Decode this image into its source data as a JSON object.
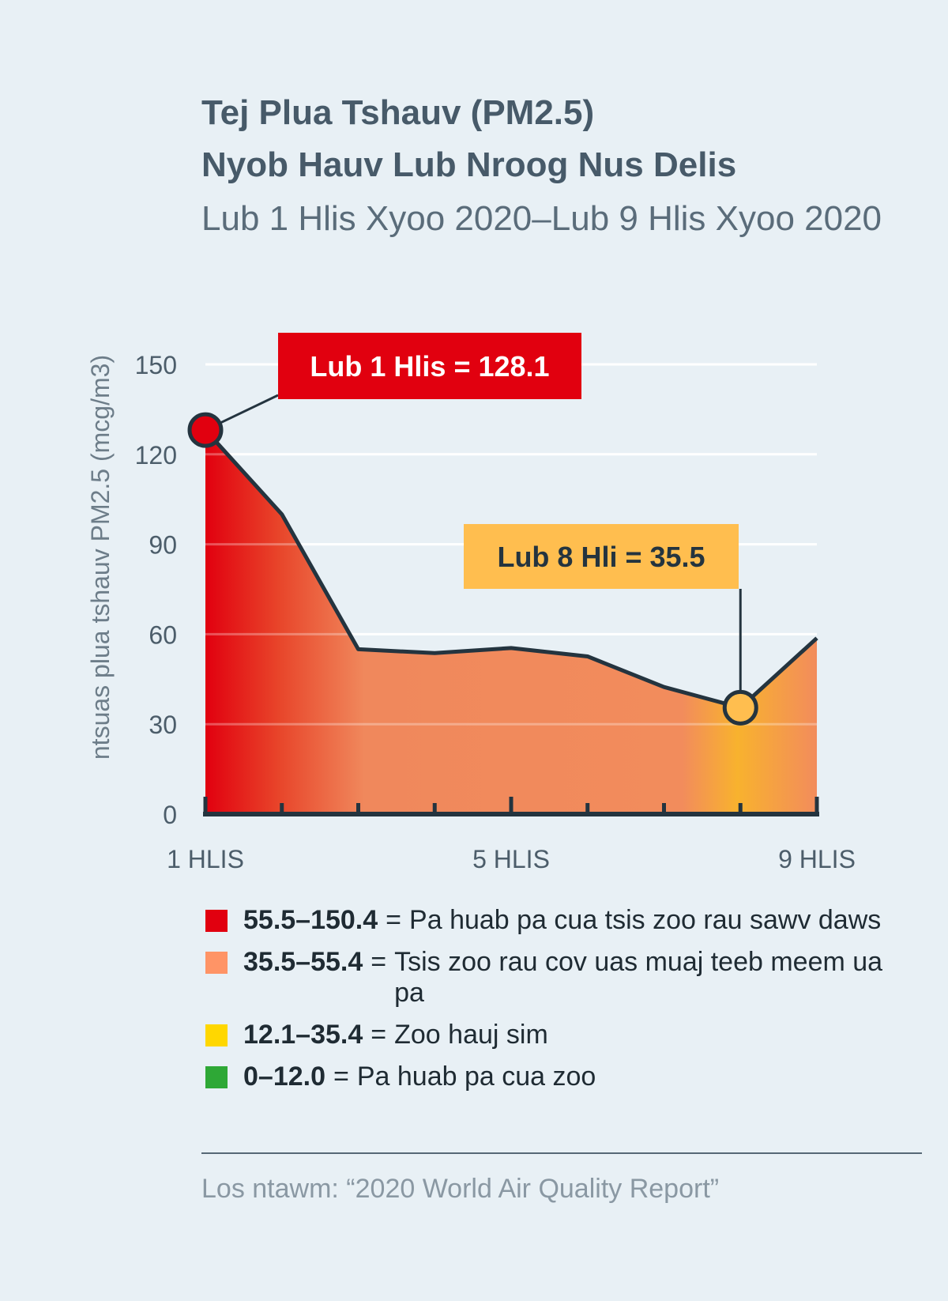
{
  "title_line1": "Tej Plua Tshauv (PM2.5)",
  "title_line2": "Nyob Hauv Lub Nroog Nus Delis",
  "subtitle": "Lub 1 Hlis Xyoo 2020–Lub 9 Hlis Xyoo 2020",
  "chart_data": {
    "type": "area",
    "title": "Tej Plua Tshauv (PM2.5) Nyob Hauv Lub Nroog Nus Delis",
    "ylabel": "ntsuas plua tshauv PM2.5 (mcg/m3)",
    "xlabel": "",
    "x": [
      1,
      2,
      3,
      4,
      5,
      6,
      7,
      8,
      9
    ],
    "x_tick_labels": [
      {
        "x": 1,
        "label": "1 HLIS"
      },
      {
        "x": 5,
        "label": "5 HLIS"
      },
      {
        "x": 9,
        "label": "9 HLIS"
      }
    ],
    "y_ticks": [
      0,
      30,
      60,
      90,
      120,
      150
    ],
    "ylim": [
      0,
      150
    ],
    "values": [
      128.1,
      100,
      55,
      53.7,
      55.4,
      52.6,
      42.4,
      35.5,
      58.7
    ],
    "grid": true,
    "annotations": [
      {
        "x": 1,
        "text": "Lub 1 Hlis = 128.1",
        "color": "#e1000f"
      },
      {
        "x": 8,
        "text": "Lub 8 Hli = 35.5",
        "color": "#ffbe4f"
      }
    ]
  },
  "legend": [
    {
      "range": "55.5–150.4",
      "eq": "=",
      "text": "Pa huab pa cua tsis zoo rau sawv daws",
      "color": "#e1000f"
    },
    {
      "range": "35.5–55.4",
      "eq": "=",
      "text": "Tsis zoo rau cov uas muaj teeb meem ua pa",
      "color": "#ff9466"
    },
    {
      "range": "12.1–35.4",
      "eq": "=",
      "text": "Zoo hauj sim",
      "color": "#ffd700"
    },
    {
      "range": "0–12.0",
      "eq": "=",
      "text": "Pa huab pa cua zoo",
      "color": "#2ea836"
    }
  ],
  "source": "Los ntawm: “2020 World Air Quality Report”"
}
